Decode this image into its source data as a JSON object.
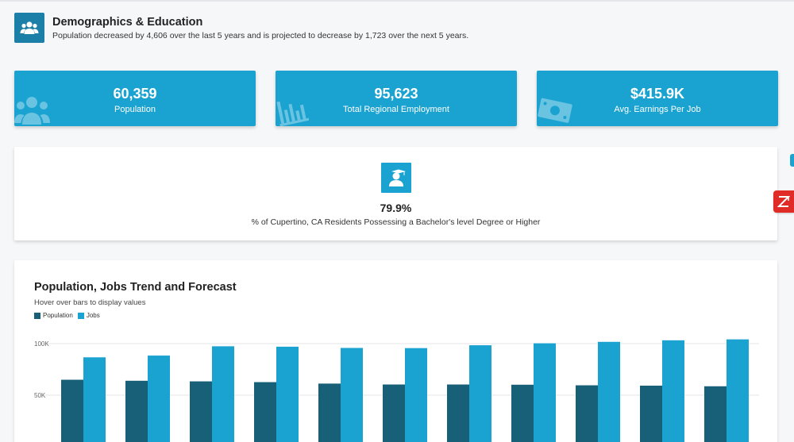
{
  "header": {
    "title": "Demographics & Education",
    "subtitle": "Population decreased by 4,606 over the last 5 years and is projected to decrease by 1,723 over the next 5 years.",
    "icon": "people-icon"
  },
  "stats": [
    {
      "value": "60,359",
      "label": "Population",
      "icon": "people-icon"
    },
    {
      "value": "95,623",
      "label": "Total Regional Employment",
      "icon": "bar-chart-icon"
    },
    {
      "value": "$415.9K",
      "label": "Avg. Earnings Per Job",
      "icon": "money-icon"
    }
  ],
  "degree": {
    "value": "79.9%",
    "label": "% of Cupertino, CA Residents Possessing a Bachelor's level Degree or Higher",
    "icon": "graduate-icon"
  },
  "chart": {
    "title": "Population, Jobs Trend and Forecast",
    "subtitle": "Hover over bars to display values"
  },
  "colors": {
    "card_blue": "#1aa3d1",
    "header_icon": "#1b7fa8",
    "population": "#185f78",
    "jobs": "#1aa3d1"
  },
  "chart_data": {
    "type": "bar",
    "ylim": [
      0,
      100000
    ],
    "yticks": [
      {
        "value": 100000,
        "label": "100K"
      },
      {
        "value": 50000,
        "label": "50K"
      }
    ],
    "legend": "top-left",
    "series": [
      {
        "name": "Population",
        "values": [
          64965,
          63985,
          63397,
          62647,
          61244,
          60359,
          60359,
          60140,
          59580,
          59240,
          58636
        ]
      },
      {
        "name": "Jobs",
        "values": [
          86700,
          88400,
          97400,
          97000,
          95800,
          95623,
          98400,
          100300,
          101700,
          103200,
          104100
        ]
      }
    ]
  }
}
